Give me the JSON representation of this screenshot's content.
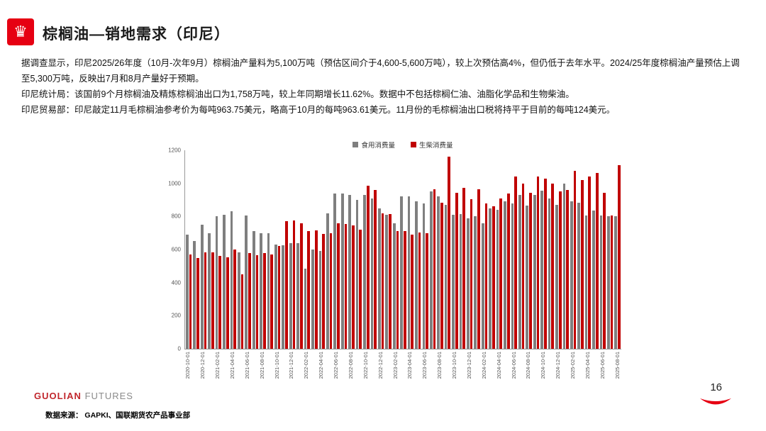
{
  "slide": {
    "title": "棕榈油—销地需求（印尼）",
    "paragraphs": [
      "据调查显示，印尼2025/26年度（10月-次年9月）棕榈油产量料为5,100万吨（预估区间介于4,600-5,600万吨），较上次预估高4%，但仍低于去年水平。2024/25年度棕榈油产量预估上调至5,300万吨，反映出7月和8月产量好于预期。",
      "印尼统计局：该国前9个月棕榈油及精炼棕榈油出口为1,758万吨，较上年同期增长11.62%。数据中不包括棕榈仁油、油脂化学品和生物柴油。",
      "印尼贸易部：印尼敲定11月毛棕榈油参考价为每吨963.75美元，略高于10月的每吨963.61美元。11月份的毛棕榈油出口税将持平于目前的每吨124美元。"
    ],
    "brand_red": "GUOLIAN",
    "brand_gray": "FUTURES",
    "source": "数据来源：  GAPKI、国联期货农产品事业部",
    "page_number": "16",
    "crown_icon": "♛"
  },
  "chart_data": {
    "type": "bar",
    "title": "",
    "legend_position": "top",
    "grid": false,
    "ylim": [
      0,
      1200
    ],
    "yticks": [
      0,
      200,
      400,
      600,
      800,
      1000,
      1200
    ],
    "label_every": 2,
    "categories": [
      "2020-10-01",
      "2020-11-01",
      "2020-12-01",
      "2021-01-01",
      "2021-02-01",
      "2021-03-01",
      "2021-04-01",
      "2021-05-01",
      "2021-06-01",
      "2021-07-01",
      "2021-08-01",
      "2021-09-01",
      "2021-10-01",
      "2021-11-01",
      "2021-12-01",
      "2022-01-01",
      "2022-02-01",
      "2022-03-01",
      "2022-04-01",
      "2022-05-01",
      "2022-06-01",
      "2022-07-01",
      "2022-08-01",
      "2022-09-01",
      "2022-10-01",
      "2022-11-01",
      "2022-12-01",
      "2023-01-01",
      "2023-02-01",
      "2023-03-01",
      "2023-04-01",
      "2023-05-01",
      "2023-06-01",
      "2023-07-01",
      "2023-08-01",
      "2023-09-01",
      "2023-10-01",
      "2023-11-01",
      "2023-12-01",
      "2024-01-01",
      "2024-02-01",
      "2024-03-01",
      "2024-04-01",
      "2024-05-01",
      "2024-06-01",
      "2024-07-01",
      "2024-08-01",
      "2024-09-01",
      "2024-10-01",
      "2024-11-01",
      "2024-12-01",
      "2025-01-01",
      "2025-02-01",
      "2025-03-01",
      "2025-04-01",
      "2025-05-01",
      "2025-06-01",
      "2025-07-01",
      "2025-08-01"
    ],
    "series": [
      {
        "name": "食用消费量",
        "color": "#7f7f7f",
        "values": [
          690,
          650,
          750,
          700,
          800,
          810,
          830,
          585,
          805,
          710,
          700,
          700,
          630,
          625,
          640,
          640,
          485,
          600,
          590,
          820,
          940,
          940,
          930,
          900,
          930,
          910,
          850,
          810,
          760,
          920,
          920,
          890,
          880,
          950,
          920,
          870,
          810,
          815,
          790,
          800,
          760,
          850,
          840,
          890,
          880,
          930,
          865,
          930,
          955,
          910,
          870,
          1000,
          890,
          885,
          805,
          835,
          805,
          800,
          800
        ]
      },
      {
        "name": "生柴消费量",
        "color": "#c00000",
        "values": [
          570,
          550,
          585,
          585,
          560,
          555,
          600,
          450,
          580,
          565,
          580,
          570,
          620,
          770,
          775,
          760,
          710,
          715,
          695,
          700,
          760,
          755,
          745,
          720,
          985,
          960,
          820,
          815,
          710,
          710,
          690,
          705,
          700,
          965,
          885,
          1160,
          945,
          975,
          905,
          965,
          880,
          860,
          910,
          940,
          1040,
          1000,
          945,
          1040,
          1030,
          1000,
          950,
          960,
          1075,
          1020,
          1040,
          1065,
          945,
          805,
          1110
        ]
      }
    ]
  }
}
